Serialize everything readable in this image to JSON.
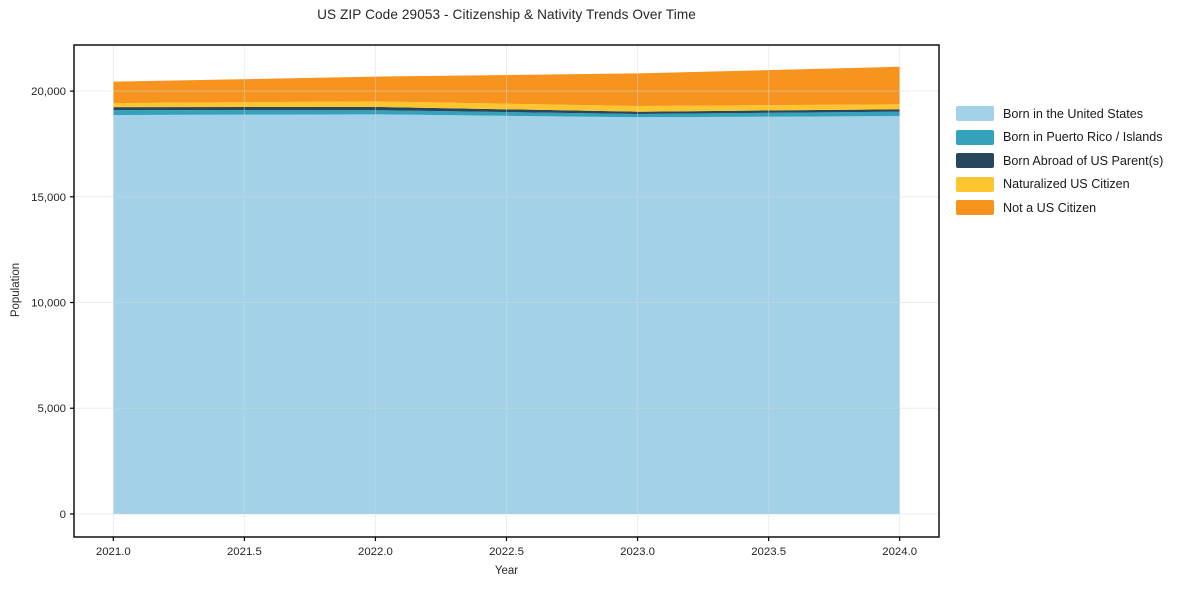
{
  "chart_data": {
    "type": "area",
    "stacked": true,
    "title": "US ZIP Code 29053 - Citizenship & Nativity Trends Over Time",
    "xlabel": "Year",
    "ylabel": "Population",
    "x": [
      2021,
      2022,
      2023,
      2024
    ],
    "series": [
      {
        "name": "Born in the United States",
        "color": "#a2d1e8",
        "values": [
          18870,
          18900,
          18760,
          18820
        ]
      },
      {
        "name": "Born in Puerto Rico / Islands",
        "color": "#35a2bd",
        "values": [
          230,
          195,
          155,
          205
        ]
      },
      {
        "name": "Born Abroad of US Parent(s)",
        "color": "#27485c",
        "values": [
          140,
          160,
          110,
          115
        ]
      },
      {
        "name": "Naturalized US Citizen",
        "color": "#fdc62f",
        "values": [
          195,
          260,
          270,
          235
        ]
      },
      {
        "name": "Not a US Citizen",
        "color": "#f79420",
        "values": [
          1010,
          1170,
          1545,
          1775
        ]
      }
    ],
    "totals": [
      20445,
      20685,
      20840,
      21150
    ],
    "xticks": {
      "values": [
        2021.0,
        2021.5,
        2022.0,
        2022.5,
        2023.0,
        2023.5,
        2024.0
      ],
      "labels": [
        "2021.0",
        "2021.5",
        "2022.0",
        "2022.5",
        "2023.0",
        "2023.5",
        "2024.0"
      ]
    },
    "yticks": {
      "values": [
        0,
        5000,
        10000,
        15000,
        20000
      ],
      "labels": [
        "0",
        "5,000",
        "10,000",
        "15,000",
        "20,000"
      ]
    },
    "xlim": [
      2020.85,
      2024.15
    ],
    "ylim": [
      -1090,
      22180
    ],
    "grid": true,
    "grid_color": "#d9d9d9",
    "grid_opacity": 0.45,
    "frame_color": "#000000",
    "tick_color": "#000000",
    "background": "#ffffff",
    "legend_position": "right"
  }
}
